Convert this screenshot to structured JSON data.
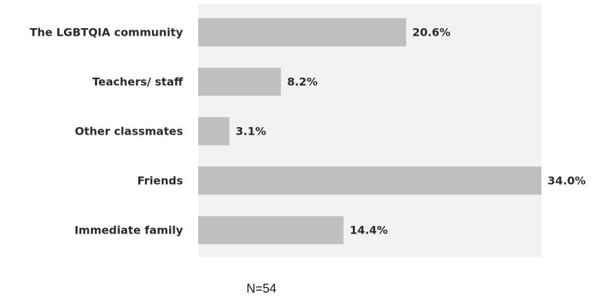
{
  "chart_data": {
    "type": "bar",
    "orientation": "horizontal",
    "categories": [
      "The LGBTQIA community",
      "Teachers/ staff",
      "Other classmates",
      "Friends",
      "Immediate family"
    ],
    "values": [
      20.6,
      8.2,
      3.1,
      34.0,
      14.4
    ],
    "value_labels": [
      "20.6%",
      "8.2%",
      "3.1%",
      "34.0%",
      "14.4%"
    ],
    "unit": "%",
    "xlim": [
      0,
      34.0
    ],
    "grid": false,
    "legend": "none",
    "colors": {
      "bar": "#bfbfbf",
      "plot_background": "#f2f2f2",
      "text": "#2b2b2b"
    }
  },
  "note": "N=54"
}
